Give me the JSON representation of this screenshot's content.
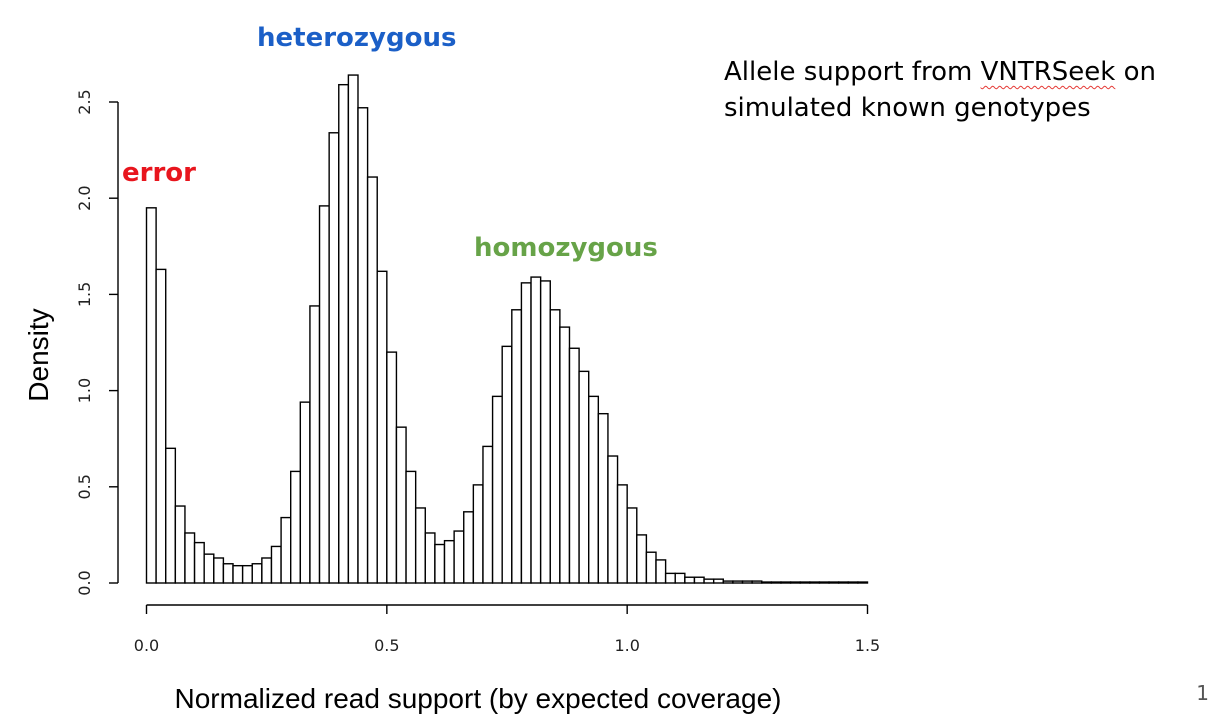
{
  "caption": {
    "line1_pre": "Allele support from ",
    "line1_word": "VNTRSeek",
    "line1_post": " on",
    "line2": "simulated known genotypes"
  },
  "page_number": "1",
  "chart_data": {
    "type": "bar",
    "subtype": "histogram",
    "title": "",
    "xlabel": "Normalized read support (by expected coverage)",
    "ylabel": "Density",
    "xlim": [
      0.0,
      1.5
    ],
    "ylim": [
      0.0,
      2.5
    ],
    "xticks": [
      0.0,
      0.5,
      1.0,
      1.5
    ],
    "xtick_labels": [
      "0.0",
      "0.5",
      "1.0",
      "1.5"
    ],
    "yticks": [
      0.0,
      0.5,
      1.0,
      1.5,
      2.0,
      2.5
    ],
    "ytick_labels": [
      "0.0",
      "0.5",
      "1.0",
      "1.5",
      "2.0",
      "2.5"
    ],
    "bin_start": 0.0,
    "bin_width": 0.02,
    "grid": false,
    "bar_fill": "#ffffff",
    "bar_stroke": "#000000",
    "values": [
      1.95,
      1.63,
      0.7,
      0.4,
      0.26,
      0.21,
      0.15,
      0.13,
      0.1,
      0.09,
      0.09,
      0.1,
      0.13,
      0.19,
      0.34,
      0.58,
      0.94,
      1.44,
      1.96,
      2.34,
      2.59,
      2.64,
      2.47,
      2.11,
      1.62,
      1.2,
      0.81,
      0.58,
      0.39,
      0.26,
      0.2,
      0.22,
      0.27,
      0.37,
      0.51,
      0.71,
      0.97,
      1.23,
      1.42,
      1.56,
      1.59,
      1.57,
      1.42,
      1.33,
      1.22,
      1.1,
      0.97,
      0.88,
      0.66,
      0.51,
      0.39,
      0.25,
      0.16,
      0.12,
      0.05,
      0.05,
      0.03,
      0.03,
      0.02,
      0.02,
      0.01,
      0.01,
      0.01,
      0.01,
      0.005,
      0.005,
      0.005,
      0.005,
      0.005,
      0.005,
      0.005,
      0.005,
      0.005,
      0.005,
      0.005
    ],
    "annotations": [
      {
        "text": "error",
        "color": "#e8151d"
      },
      {
        "text": "heterozygous",
        "color": "#1b5fc7"
      },
      {
        "text": "homozygous",
        "color": "#67a348"
      }
    ]
  }
}
